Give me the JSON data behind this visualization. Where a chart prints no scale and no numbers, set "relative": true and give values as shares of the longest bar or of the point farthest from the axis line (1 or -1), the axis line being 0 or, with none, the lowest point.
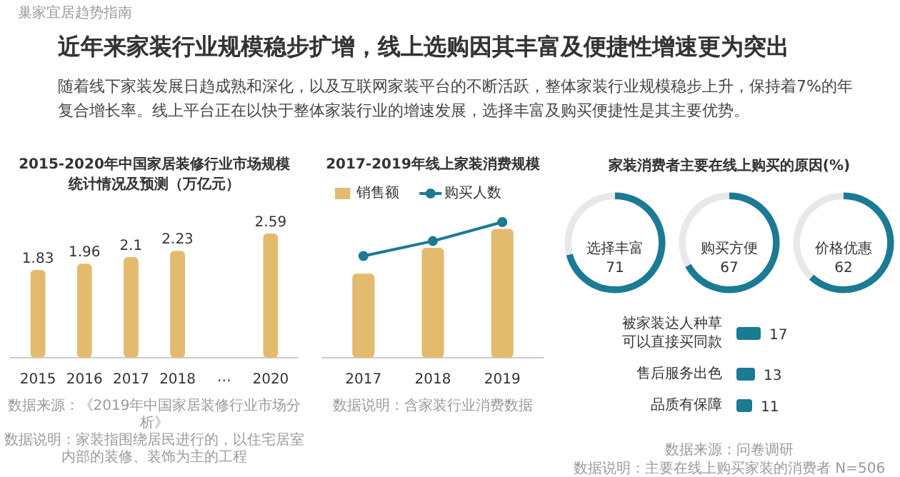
{
  "chart_data": [
    {
      "type": "other",
      "title": "近年来家装行业规模稳步扩增，线上选购因其丰富及便捷性增速更为突出",
      "subtitle": "随着线下家装发展日趋成熟和深化，以及互联网家装平台的不断活跃，整体家装行业规模稳步上升，保持着7%的年复合增长率。线上平台正在以快于整体家装行业的增速发展，选择丰富及购买便捷性是其主要优势。",
      "annotations": [
        "巢家宜居趋势指南"
      ]
    },
    {
      "type": "bar",
      "title": "2015-2020年中国家居装修行业市场规模统计情况及预测（万亿元）",
      "categories": [
        "2015",
        "2016",
        "2017",
        "2018",
        "…",
        "2020"
      ],
      "values": [
        1.83,
        1.96,
        2.1,
        2.23,
        null,
        2.59
      ],
      "color": "#e3bb6f",
      "data_labels": true,
      "annotations": [
        "数据来源：《2019年中国家居装修行业市场分析》",
        "数据说明：家装指围绕居民进行的，以住宅居室内部的装修、装饰为主的工程"
      ]
    },
    {
      "type": "bar",
      "title": "2017-2019年线上家装消费规模",
      "categories": [
        "2017",
        "2018",
        "2019"
      ],
      "relative": true,
      "legend": "top",
      "series": [
        {
          "name": "销售额",
          "type": "bar",
          "color": "#e3bb6f",
          "values": [
            0.62,
            0.81,
            0.95
          ]
        },
        {
          "name": "购买人数",
          "type": "line",
          "color": "#1b7a94",
          "marker": "circle",
          "values": [
            0.75,
            0.86,
            1
          ]
        }
      ],
      "annotations": [
        "数据说明：含家装行业消费数据"
      ]
    },
    {
      "type": "other",
      "title": "家装消费者主要在线上购买的原因(%)"
    },
    {
      "type": "donut",
      "categories": [
        "选择丰富",
        null
      ],
      "values": [
        71,
        29
      ],
      "colors": [
        "#1b7a94",
        "#e8e8e8"
      ],
      "value_labels": [
        "71",
        null
      ]
    },
    {
      "type": "donut",
      "categories": [
        "购买方便",
        null
      ],
      "values": [
        67,
        33
      ],
      "colors": [
        "#1b7a94",
        "#e8e8e8"
      ],
      "value_labels": [
        "67",
        null
      ]
    },
    {
      "type": "donut",
      "categories": [
        "价格优惠",
        null
      ],
      "values": [
        62,
        38
      ],
      "colors": [
        "#1b7a94",
        "#e8e8e8"
      ],
      "value_labels": [
        "62",
        null
      ]
    },
    {
      "type": "bar",
      "orientation": "horizontal",
      "categories": [
        "被家装达人种草可以直接买同款",
        "售后服务出色",
        "品质有保障"
      ],
      "values": [
        17,
        13,
        11
      ],
      "color": "#1b7a94",
      "data_labels": true,
      "annotations": [
        "数据来源：问卷调研",
        "数据说明：主要在线上购买家装的消费者 N=506"
      ]
    }
  ]
}
